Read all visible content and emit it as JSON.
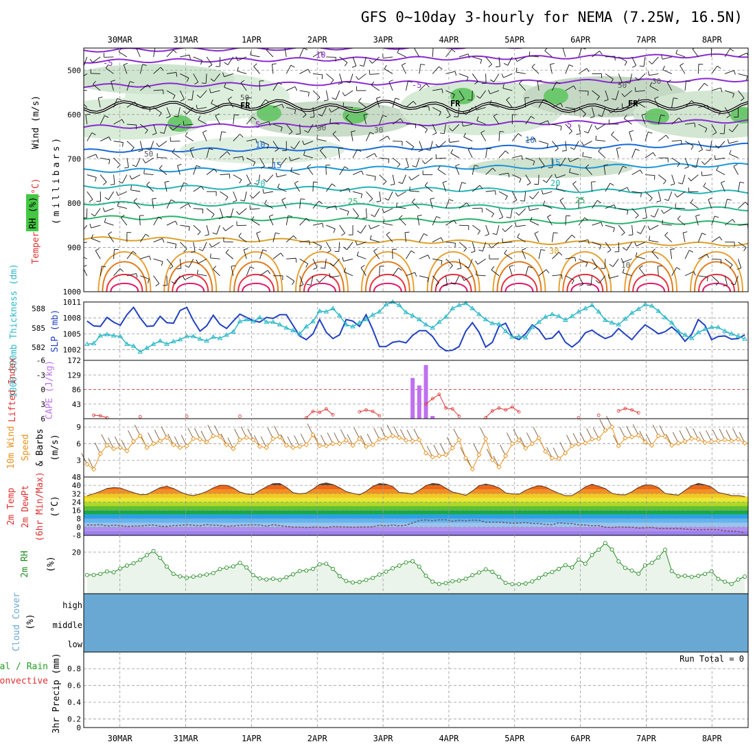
{
  "title": "GFS 0~10day 3-hourly for NEMA (7.25W, 16.5N)",
  "dates": [
    "30MAR",
    "31MAR",
    "1APR",
    "2APR",
    "3APR",
    "4APR",
    "5APR",
    "6APR",
    "7APR",
    "8APR"
  ],
  "colors": {
    "wind": "#111111",
    "temp_label": "#e03030",
    "rh_fill": "#88d488",
    "slp": "#2040c0",
    "thickness": "#2ab8c8",
    "lifted": "#e03030",
    "cape": "#c070f0",
    "wind10m": "#e8901a",
    "rh2m": "#228b22",
    "cloud": "#6aa8d4",
    "precip_total": "#22a022",
    "precip_conv": "#e03030"
  },
  "chart_data": [
    {
      "type": "contour",
      "id": "upper_air",
      "ylabel_parts": {
        "wind": "Wind (m/s)",
        "temp": "Temperature (°C)",
        "rh": "RH (%)",
        "pressure": "(millibars)"
      },
      "y_ticks": [
        "500",
        "600",
        "700",
        "800",
        "900",
        "1000"
      ],
      "ylim": [
        450,
        1000
      ],
      "freezing_label": "FR",
      "isotherms": [
        {
          "t": -10,
          "labels": [
            "10"
          ]
        },
        {
          "t": -5,
          "labels": [
            "-5",
            "-5"
          ]
        },
        {
          "t": 5,
          "labels": [
            "5",
            "5"
          ]
        },
        {
          "t": 10,
          "labels": [
            "10",
            "10"
          ]
        },
        {
          "t": 15,
          "labels": [
            "15",
            "15"
          ]
        },
        {
          "t": 20,
          "labels": [
            "20",
            "20"
          ]
        },
        {
          "t": 25,
          "labels": [
            "25",
            "25"
          ]
        },
        {
          "t": 30,
          "labels": [
            "30"
          ]
        }
      ],
      "rh_labels": [
        "50",
        "30",
        "50",
        "30",
        "50",
        "30",
        "10"
      ]
    },
    {
      "type": "line",
      "id": "slp_thickness",
      "ylabel_left": "1000-500mb Thickness (dm)",
      "ylabel_right": "SLP (mb)",
      "left_ticks": [
        "588",
        "585",
        "582"
      ],
      "right_ticks": [
        "1011",
        "1008",
        "1005",
        "1002"
      ],
      "right_ylim": [
        1000,
        1011
      ],
      "left_ylim": [
        580,
        589
      ],
      "series": [
        {
          "axis": "right",
          "values": [
            1007.4,
            1006.5,
            1006.4,
            1008.1,
            1007.2,
            1006.6,
            1008.6,
            1010.0,
            1008.0,
            1006.4,
            1006.5,
            1008.3,
            1007.1,
            1007.0,
            1009.4,
            1010.0,
            1007.5,
            1005.5,
            1006.5,
            1008.5,
            1006.8,
            1006.0,
            1007.4,
            1008.7,
            1008.1,
            1007.5,
            1007.2,
            1008.1,
            1007.9,
            1008.6,
            1008.6,
            1006.6,
            1004.6,
            1003.9,
            1005.0,
            1007.7,
            1005.3,
            1004.1,
            1004.8,
            1007.7,
            1007.4,
            1006.4,
            1008.6,
            1005.8,
            1002.6,
            1002.6,
            1003.4,
            1003.6,
            1003.3,
            1004.7,
            1005.6,
            1005.6,
            1004.5,
            1002.7,
            1001.8,
            1001.9,
            1002.6,
            1005.5,
            1007.1,
            1005.3,
            1002.5,
            1003.4,
            1006.4,
            1007.0,
            1004.5,
            1003.9,
            1005.0,
            1006.7,
            1005.8,
            1004.0,
            1004.2,
            1005.5,
            1003.4,
            1002.5,
            1003.5,
            1005.2,
            1005.7,
            1004.8,
            1004.1,
            1004.6,
            1006.0,
            1004.9,
            1003.9,
            1005.4,
            1006.7,
            1005.9,
            1005.0,
            1005.4,
            1006.3,
            1005.2,
            1003.6,
            1004.9,
            1007.7,
            1006.6,
            1003.9,
            1004.5,
            1004.6,
            1004.0,
            1004.1,
            1004.8
          ]
        },
        {
          "axis": "left",
          "values": [
            582.5,
            582.6,
            583.8,
            584.0,
            583.8,
            583.7,
            582.5,
            582.2,
            581.3,
            581.9,
            582.5,
            583.0,
            582.5,
            582.9,
            583.2,
            583.7,
            583.7,
            583.3,
            583.0,
            583.6,
            583.4,
            583.9,
            584.4,
            586.0,
            586.3,
            586.0,
            586.6,
            585.9,
            585.9,
            585.5,
            585.0,
            584.6,
            584.1,
            585.2,
            586.0,
            587.6,
            587.5,
            588.0,
            586.9,
            585.5,
            585.2,
            585.8,
            586.3,
            587.0,
            587.5,
            588.6,
            589.0,
            588.5,
            587.4,
            586.9,
            586.3,
            585.5,
            585.0,
            585.9,
            586.7,
            588.0,
            588.5,
            588.8,
            588.0,
            587.1,
            586.3,
            585.7,
            585.6,
            584.5,
            583.6,
            583.7,
            583.5,
            585.1,
            585.9,
            586.7,
            587.1,
            586.8,
            586.2,
            586.8,
            587.5,
            588.0,
            588.5,
            587.5,
            586.2,
            585.8,
            585.5,
            586.4,
            587.3,
            587.9,
            588.6,
            588.4,
            587.6,
            586.6,
            585.8,
            584.5,
            583.9,
            583.4,
            584.3,
            584.8,
            585.1,
            585.1,
            584.5,
            584.1,
            583.7,
            583.3
          ]
        }
      ]
    },
    {
      "type": "bar",
      "id": "cape_li",
      "ylabel_left": "Lifted Index",
      "ylabel_right": "CAPE (J/kg)",
      "left_ticks": [
        "-6",
        "-3",
        "0",
        "3",
        "6"
      ],
      "right_ticks": [
        "172",
        "129",
        "86",
        "43"
      ],
      "right_ylim": [
        0,
        172
      ],
      "left_ylim": [
        6,
        -6
      ],
      "cape_bars": [
        {
          "i": 49,
          "v": 120
        },
        {
          "i": 50,
          "v": 98
        },
        {
          "i": 51,
          "v": 158
        },
        {
          "i": 52,
          "v": 8
        }
      ],
      "lifted_index": [
        6.0,
        5.3,
        5.4,
        5.8,
        6.0,
        6.0,
        6.0,
        6.0,
        5.6,
        6.0,
        6.0,
        6.0,
        6.0,
        6.0,
        6.0,
        5.5,
        6.0,
        6.0,
        6.0,
        6.0,
        6.0,
        6.0,
        6.0,
        5.5,
        6.0,
        6.0,
        6.0,
        6.0,
        6.0,
        6.0,
        6.0,
        6.0,
        6.0,
        5.8,
        4.5,
        4.7,
        4.0,
        5.2,
        6.0,
        6.0,
        6.0,
        4.6,
        4.2,
        4.5,
        5.4,
        6.0,
        6.0,
        6.0,
        6.0,
        6.0,
        6.0,
        3.0,
        1.9,
        1.0,
        3.8,
        4.0,
        5.5,
        6.0,
        6.0,
        6.0,
        5.8,
        4.4,
        3.8,
        4.2,
        3.6,
        4.6,
        6.0,
        6.0,
        6.0,
        6.0,
        6.0,
        6.0,
        6.0,
        6.0,
        5.8,
        6.0,
        6.0,
        5.3,
        5.9,
        6.0,
        4.4,
        3.9,
        4.2,
        4.8,
        6.0,
        6.0,
        6.0,
        6.0,
        6.0,
        6.0,
        6.0,
        6.0,
        6.0,
        6.0,
        6.0,
        6.0,
        6.0,
        6.0,
        6.0,
        6.0
      ]
    },
    {
      "type": "line",
      "id": "wind10m",
      "ylabel": "10m Wind Speed & Barbs (m/s)",
      "ylabel_parts": [
        "10m Wind",
        "Speed",
        "& Barbs"
      ],
      "unit": "(m/s)",
      "ticks": [
        "9",
        "6",
        "3"
      ],
      "ylim": [
        0,
        10.5
      ],
      "values": [
        2.3,
        1.4,
        4.2,
        5.7,
        5.1,
        5.3,
        4.7,
        6.4,
        7.4,
        5.3,
        6.0,
        6.5,
        7.1,
        5.8,
        5.3,
        5.6,
        6.9,
        6.8,
        6.3,
        7.4,
        7.3,
        5.8,
        5.1,
        6.7,
        7.1,
        6.7,
        5.5,
        5.3,
        6.9,
        7.2,
        5.7,
        5.3,
        5.5,
        5.8,
        7.6,
        5.6,
        5.6,
        6.0,
        6.0,
        6.6,
        5.7,
        6.9,
        5.5,
        5.8,
        6.8,
        7.0,
        7.4,
        7.1,
        6.6,
        6.5,
        6.7,
        4.3,
        3.6,
        3.8,
        4.0,
        5.2,
        6.7,
        3.4,
        1.4,
        4.0,
        6.9,
        3.1,
        1.8,
        3.8,
        6.0,
        6.6,
        5.2,
        6.0,
        7.0,
        4.6,
        3.4,
        3.3,
        4.3,
        5.6,
        5.9,
        6.1,
        6.8,
        6.9,
        8.4,
        9.0,
        5.6,
        7.0,
        7.2,
        7.5,
        6.3,
        5.7,
        7.4,
        7.3,
        5.7,
        6.1,
        6.4,
        6.9,
        6.8,
        6.2,
        6.4,
        6.5,
        6.7,
        6.5,
        6.8,
        6.1
      ]
    },
    {
      "type": "area",
      "id": "temp2m",
      "ylabel_parts": [
        "2m Temp",
        "2m DewPt",
        "(6hr Min/Max)"
      ],
      "unit": "(°C)",
      "ticks": [
        "48",
        "40",
        "32",
        "24",
        "16",
        "8",
        "0",
        "-8"
      ],
      "ylim": [
        -8,
        48
      ],
      "band_colors": [
        "#9a80ee",
        "#b090ee",
        "#9ac4ee",
        "#64b4ee",
        "#28a0ee",
        "#18a848",
        "#60c030",
        "#b0d828",
        "#e8e830",
        "#f2c824",
        "#f29020",
        "#ec6818",
        "#e23a16",
        "#c42010",
        "#a01c10"
      ],
      "temperature": [
        30.0,
        31.9,
        34.2,
        37.0,
        37.9,
        37.5,
        35.1,
        33.0,
        31.0,
        31.2,
        34.5,
        37.8,
        39.1,
        37.0,
        33.8,
        31.2,
        30.2,
        31.7,
        34.1,
        37.6,
        40.1,
        40.0,
        37.6,
        33.6,
        31.8,
        31.2,
        35.1,
        38.6,
        41.7,
        41.8,
        38.2,
        33.0,
        31.9,
        32.6,
        36.4,
        41.0,
        42.3,
        40.8,
        37.8,
        34.0,
        32.4,
        31.0,
        34.2,
        39.0,
        41.7,
        41.2,
        38.8,
        33.2,
        32.7,
        31.7,
        35.2,
        39.8,
        41.8,
        41.1,
        37.3,
        33.6,
        32.2,
        30.4,
        34.6,
        39.6,
        41.2,
        39.9,
        37.7,
        32.8,
        31.8,
        31.5,
        35.2,
        38.0,
        39.7,
        38.5,
        35.2,
        32.4,
        30.1,
        30.2,
        34.1,
        38.6,
        41.1,
        39.0,
        36.9,
        32.4,
        31.0,
        30.9,
        33.8,
        38.0,
        40.4,
        40.3,
        37.9,
        32.3,
        31.3,
        30.6,
        35.1,
        39.6,
        41.9,
        40.5,
        38.3,
        33.2,
        31.8,
        30.2,
        30.2,
        29.2
      ],
      "dewpoint": [
        2.0,
        1.9,
        2.4,
        1.0,
        1.8,
        1.4,
        0.5,
        1.0,
        1.0,
        1.7,
        2.0,
        0.8,
        0.6,
        1.4,
        1.6,
        2.3,
        1.7,
        1.3,
        2.4,
        1.8,
        1.6,
        0.7,
        1.1,
        1.7,
        1.9,
        2.2,
        2.0,
        0.8,
        2.3,
        1.4,
        0.5,
        0.0,
        -0.1,
        -0.5,
        -0.1,
        -0.2,
        -0.6,
        0.5,
        0.2,
        0.1,
        -0.2,
        0.0,
        0.1,
        0.2,
        1.8,
        1.1,
        2.0,
        1.2,
        1.8,
        3.9,
        6.3,
        6.8,
        6.1,
        6.9,
        6.9,
        5.5,
        6.5,
        6.0,
        6.6,
        6.5,
        4.7,
        4.7,
        4.6,
        4.2,
        3.6,
        3.8,
        4.3,
        3.4,
        3.5,
        2.4,
        2.2,
        4.0,
        3.5,
        3.3,
        2.1,
        2.0,
        1.2,
        1.4,
        -0.1,
        -0.5,
        0.1,
        -0.2,
        -0.1,
        -1.1,
        -0.8,
        -0.3,
        -1.5,
        -1.5,
        -1.5,
        -1.5,
        -2.0,
        -2.4,
        -2.7,
        -2.5,
        -2.4,
        -2.6,
        -3.7,
        -3.9,
        -4.3,
        -5.6
      ]
    },
    {
      "type": "area",
      "id": "rh2m",
      "ylabel": "2m RH",
      "unit": "(%)",
      "ticks": [
        "20"
      ],
      "ylim": [
        0,
        28
      ],
      "values": [
        9.0,
        9.0,
        9.5,
        10.7,
        10.3,
        12.1,
        13.5,
        14.6,
        16.3,
        18.5,
        20.5,
        17.2,
        13.0,
        9.5,
        8.3,
        7.7,
        8.2,
        8.7,
        9.2,
        9.9,
        11.8,
        12.5,
        13.1,
        14.8,
        12.6,
        8.9,
        7.3,
        6.8,
        7.2,
        6.7,
        7.9,
        9.3,
        10.9,
        11.1,
        11.9,
        14.1,
        14.4,
        11.9,
        8.4,
        6.1,
        5.4,
        5.6,
        6.6,
        7.6,
        9.2,
        10.6,
        12.2,
        13.5,
        15.0,
        15.6,
        13.0,
        8.6,
        5.8,
        4.7,
        5.1,
        6.0,
        6.3,
        7.2,
        8.9,
        10.2,
        11.7,
        10.5,
        8.1,
        5.2,
        4.6,
        4.6,
        4.9,
        5.9,
        7.6,
        9.3,
        10.4,
        11.9,
        13.7,
        12.6,
        16.4,
        14.4,
        18.6,
        21.1,
        24.3,
        21.2,
        15.5,
        12.4,
        11.1,
        9.6,
        13.6,
        14.8,
        17.4,
        21.1,
        10.9,
        8.4,
        8.6,
        8.1,
        8.6,
        9.5,
        10.8,
        7.1,
        5.8,
        4.7,
        6.8,
        8.2
      ]
    },
    {
      "type": "heatmap",
      "id": "cloud",
      "ylabel": "Cloud Cover",
      "unit": "(%)",
      "levels": [
        "high",
        "middle",
        "low"
      ],
      "high": [
        0,
        0,
        0,
        0,
        0,
        0,
        0,
        0,
        0,
        0,
        0,
        0,
        0,
        0,
        0,
        0,
        0,
        0,
        0,
        0,
        0,
        0,
        0,
        0,
        0,
        0,
        0,
        0,
        0,
        0,
        0,
        0,
        0,
        0,
        0,
        0,
        0,
        0,
        0,
        0,
        0,
        0,
        0,
        0,
        0,
        0,
        0,
        0,
        0,
        0,
        0,
        0,
        0,
        0,
        0,
        0,
        0,
        0,
        0,
        0,
        0,
        0,
        0,
        0,
        0,
        0,
        0,
        0,
        0,
        0,
        0,
        0,
        0,
        0,
        0,
        0,
        0,
        0,
        0,
        0,
        0,
        0,
        0,
        0,
        0,
        0,
        0,
        0,
        0,
        0,
        0,
        0,
        0,
        0,
        0,
        0,
        0,
        0,
        0,
        0
      ],
      "middle": [
        0,
        0,
        0,
        0,
        0,
        0,
        0,
        0,
        0,
        0,
        0,
        0,
        0,
        0,
        0,
        0,
        0,
        0,
        0,
        0,
        0,
        0,
        0,
        0,
        0,
        0,
        0,
        0,
        0,
        0,
        0,
        0,
        0,
        0,
        0,
        0,
        0,
        0,
        0,
        0,
        0,
        0,
        0,
        0,
        0,
        0,
        0,
        0,
        0,
        0,
        0,
        0,
        0,
        0,
        0,
        0,
        0,
        0,
        0,
        0,
        0,
        0,
        0,
        0,
        0,
        0,
        0,
        0,
        0,
        0,
        0,
        0,
        0,
        0,
        0,
        0,
        0,
        0,
        0,
        0,
        0,
        0,
        0,
        0,
        0,
        0,
        0,
        0,
        0,
        0,
        0,
        0,
        0,
        0,
        0,
        0,
        0,
        0,
        0,
        0
      ],
      "low": [
        0,
        0,
        0,
        0,
        0,
        0,
        0,
        0,
        0,
        0,
        0,
        0,
        0,
        0,
        0,
        0,
        0,
        0,
        0,
        0,
        0,
        0,
        0,
        0,
        0,
        0,
        0,
        0,
        0,
        0,
        0,
        0,
        0,
        0,
        0,
        0,
        0,
        0,
        0,
        0,
        0,
        0,
        0,
        0,
        0,
        0,
        0,
        0,
        0,
        0,
        0,
        0,
        0,
        0,
        0,
        0,
        0,
        0,
        0,
        0,
        0,
        0,
        0,
        0,
        0,
        0,
        0,
        0,
        0,
        0,
        0,
        0,
        0,
        0,
        0,
        0,
        0,
        0,
        0,
        0,
        0,
        0,
        0,
        0,
        0,
        0,
        0,
        0,
        0,
        0,
        0,
        0,
        0,
        0,
        0,
        0,
        0,
        0,
        0,
        0
      ]
    },
    {
      "type": "bar",
      "id": "precip",
      "ylabel_parts": [
        "Total / Rain",
        "Convective"
      ],
      "ylabel": "3hr Precip (mm)",
      "ticks": [
        "0.8",
        "0.6",
        "0.4",
        "0.2",
        "0"
      ],
      "ylim": [
        0,
        0.9
      ],
      "run_total": "Run Total = 0",
      "values": []
    }
  ]
}
